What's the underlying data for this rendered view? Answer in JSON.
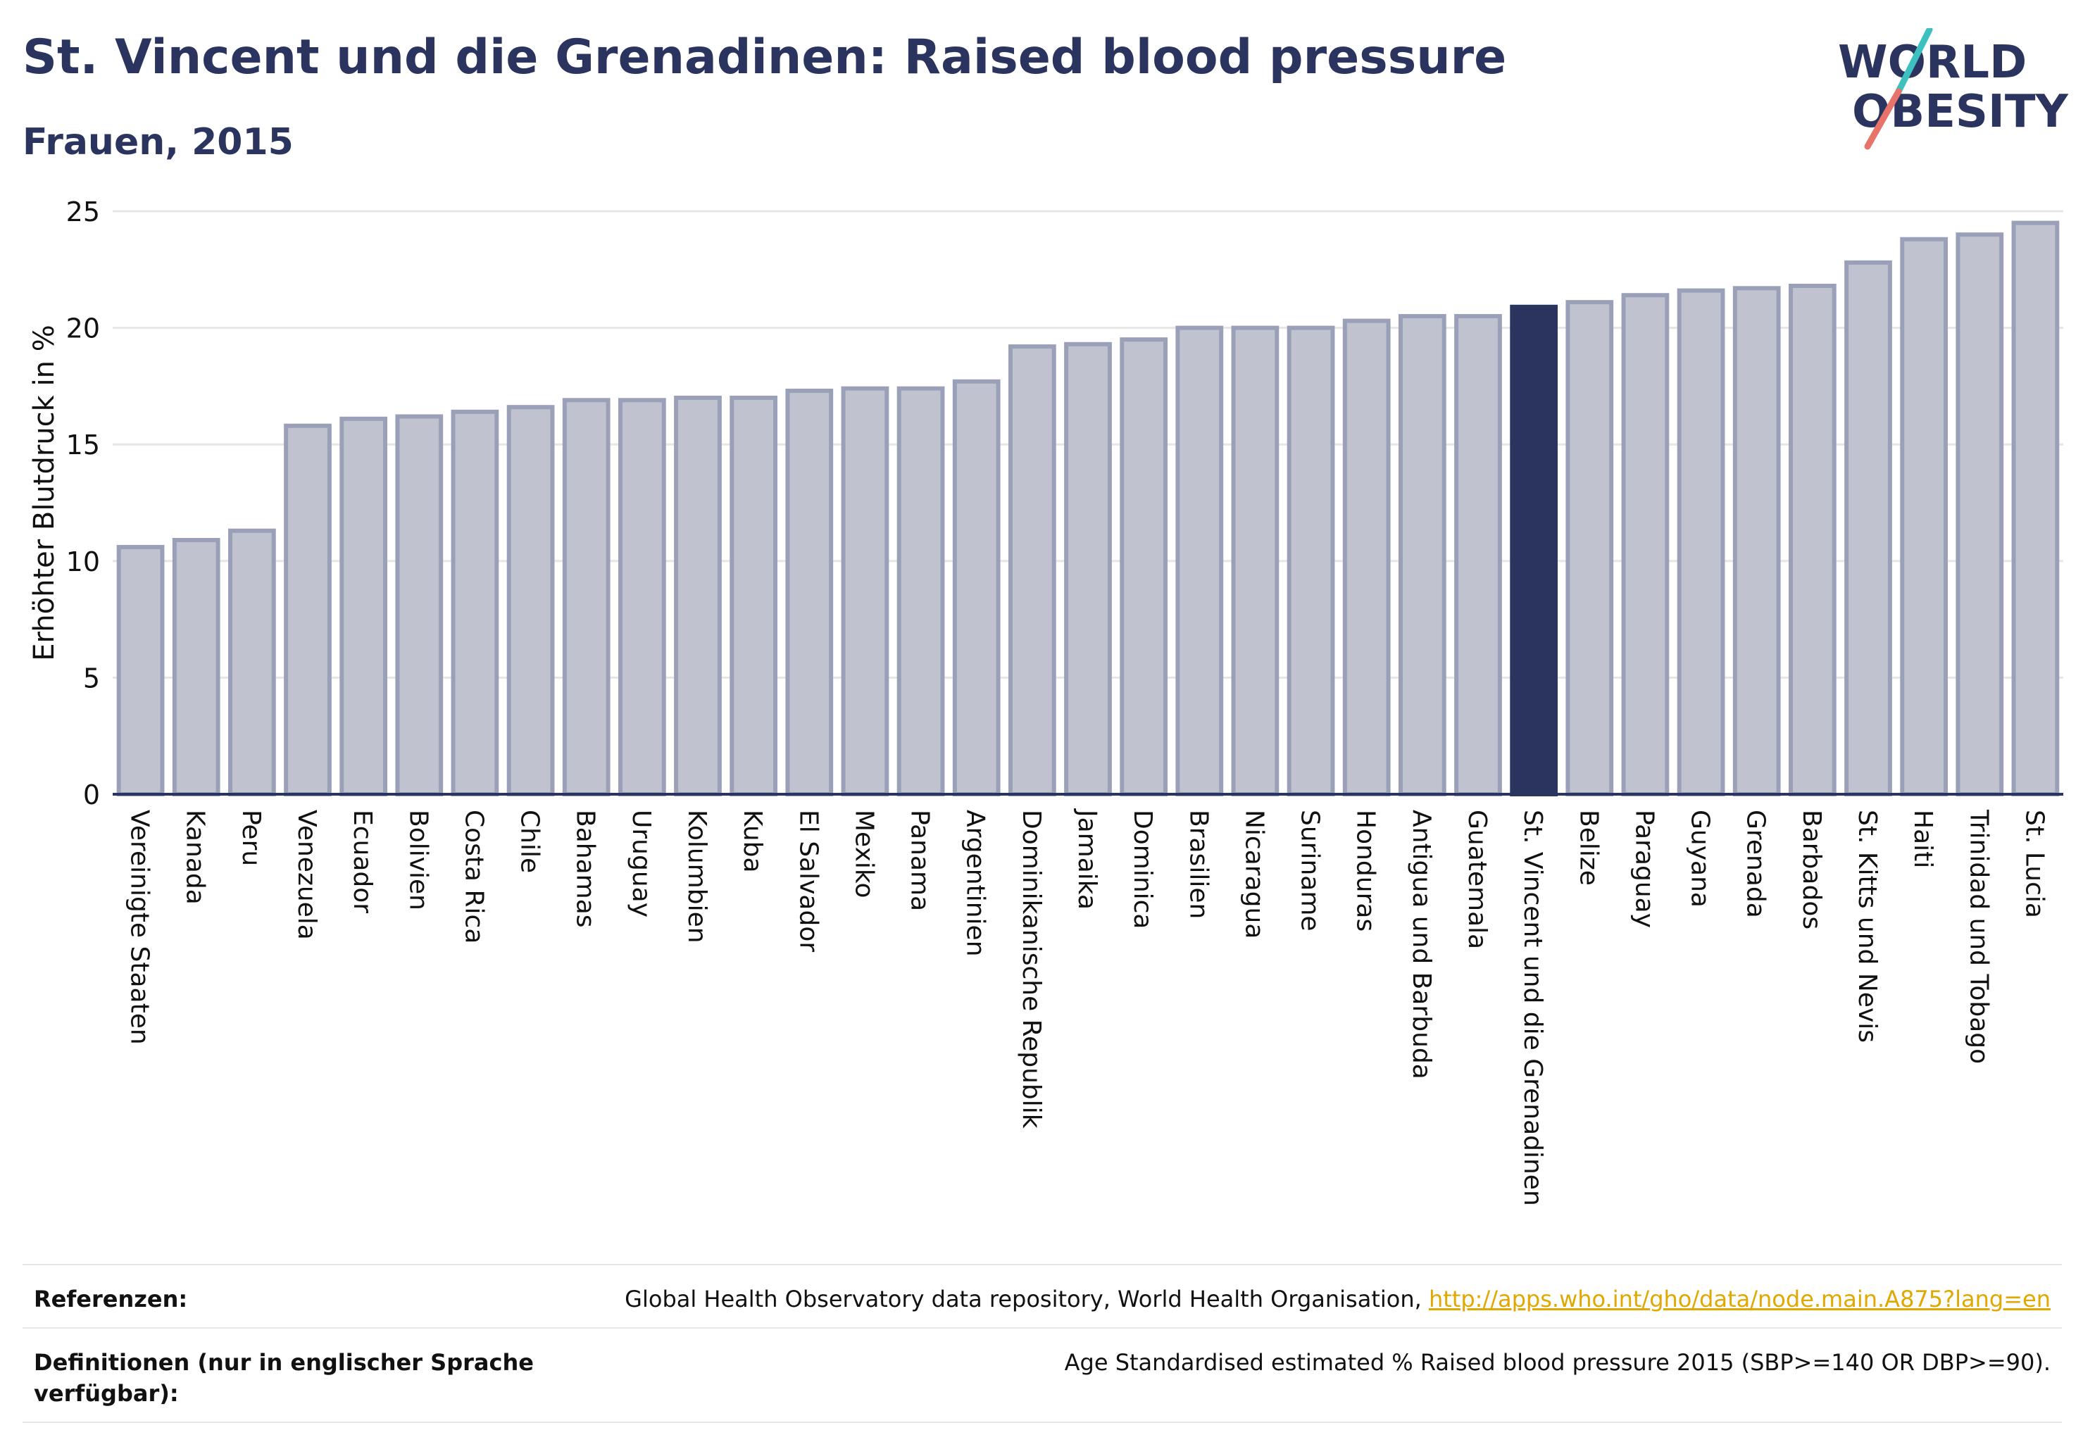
{
  "title": "St. Vincent und die Grenadinen: Raised blood pressure",
  "subtitle": "Frauen, 2015",
  "logo": {
    "line1": "WORLD",
    "line2": "OBESITY",
    "colors": {
      "text": "#2a345e",
      "slash_top": "#3cc0c0",
      "slash_bottom": "#e8736a"
    }
  },
  "chart_data": {
    "type": "bar",
    "title": "St. Vincent und die Grenadinen: Raised blood pressure",
    "subtitle": "Frauen, 2015",
    "ylabel": "Erhöhter Blutdruck in %",
    "xlabel": "",
    "ylim": [
      0,
      25
    ],
    "yticks": [
      0,
      5,
      10,
      15,
      20,
      25
    ],
    "grid": true,
    "highlight": "St. Vincent und die Grenadinen",
    "colors": {
      "bar": "#c0c3cf",
      "bar_border": "#9aa0b8",
      "highlight": "#2a345e",
      "grid": "#e6e6e6",
      "axis": "#2a345e"
    },
    "categories": [
      "Vereinigte Staaten",
      "Kanada",
      "Peru",
      "Venezuela",
      "Ecuador",
      "Bolivien",
      "Costa Rica",
      "Chile",
      "Bahamas",
      "Uruguay",
      "Kolumbien",
      "Kuba",
      "El Salvador",
      "Mexiko",
      "Panama",
      "Argentinien",
      "Dominikanische Republik",
      "Jamaika",
      "Dominica",
      "Brasilien",
      "Nicaragua",
      "Suriname",
      "Honduras",
      "Antigua und Barbuda",
      "Guatemala",
      "St. Vincent und die Grenadinen",
      "Belize",
      "Paraguay",
      "Guyana",
      "Grenada",
      "Barbados",
      "St. Kitts und Nevis",
      "Haiti",
      "Trinidad und Tobago",
      "St. Lucia"
    ],
    "values": [
      10.6,
      10.9,
      11.3,
      15.8,
      16.1,
      16.2,
      16.4,
      16.6,
      16.9,
      16.9,
      17.0,
      17.0,
      17.3,
      17.4,
      17.4,
      17.7,
      19.2,
      19.3,
      19.5,
      20.0,
      20.0,
      20.0,
      20.3,
      20.5,
      20.5,
      20.9,
      21.1,
      21.4,
      21.6,
      21.7,
      21.8,
      22.8,
      23.8,
      24.0,
      24.5
    ]
  },
  "footer": {
    "references_label": "Referenzen:",
    "references_text": "Global Health Observatory data repository, World Health Organisation, ",
    "references_link": "http://apps.who.int/gho/data/node.main.A875?lang=en",
    "definitions_label": "Definitionen (nur in englischer Sprache verfügbar):",
    "definitions_text": "Age Standardised estimated % Raised blood pressure 2015 (SBP>=140 OR DBP>=90)."
  }
}
